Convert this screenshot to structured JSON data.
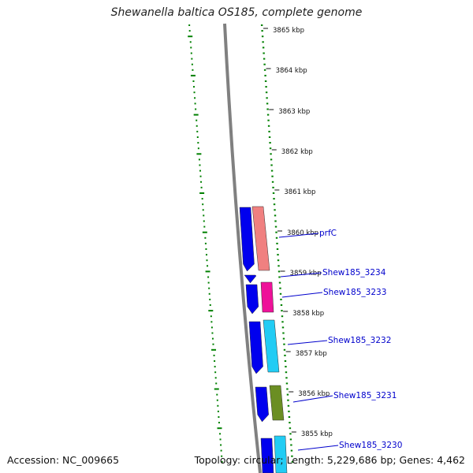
{
  "title": "Shewanella baltica OS185, complete genome",
  "footer": {
    "accession": "Accession: NC_009665",
    "summary": "Topology: circular; Length: 5,229,686 bp; Genes: 4,462"
  },
  "colors": {
    "backbone": "#808080",
    "ticks": "#008000",
    "label": "#0000cc",
    "forward_strand": "#0000ee"
  },
  "scale_labels": [
    "3865 kbp",
    "3864 kbp",
    "3863 kbp",
    "3862 kbp",
    "3861 kbp",
    "3860 kbp",
    "3859 kbp",
    "3858 kbp",
    "3857 kbp",
    "3856 kbp",
    "3855 kbp"
  ],
  "genes": [
    {
      "label": "prfC",
      "color": "#f08080"
    },
    {
      "label": "Shew185_3234",
      "color": ""
    },
    {
      "label": "Shew185_3233",
      "color": "#ee1199"
    },
    {
      "label": "Shew185_3232",
      "color": "#22ccf4"
    },
    {
      "label": "Shew185_3231",
      "color": "#6b8e23"
    },
    {
      "label": "Shew185_3230",
      "color": "#22ccf4"
    }
  ]
}
